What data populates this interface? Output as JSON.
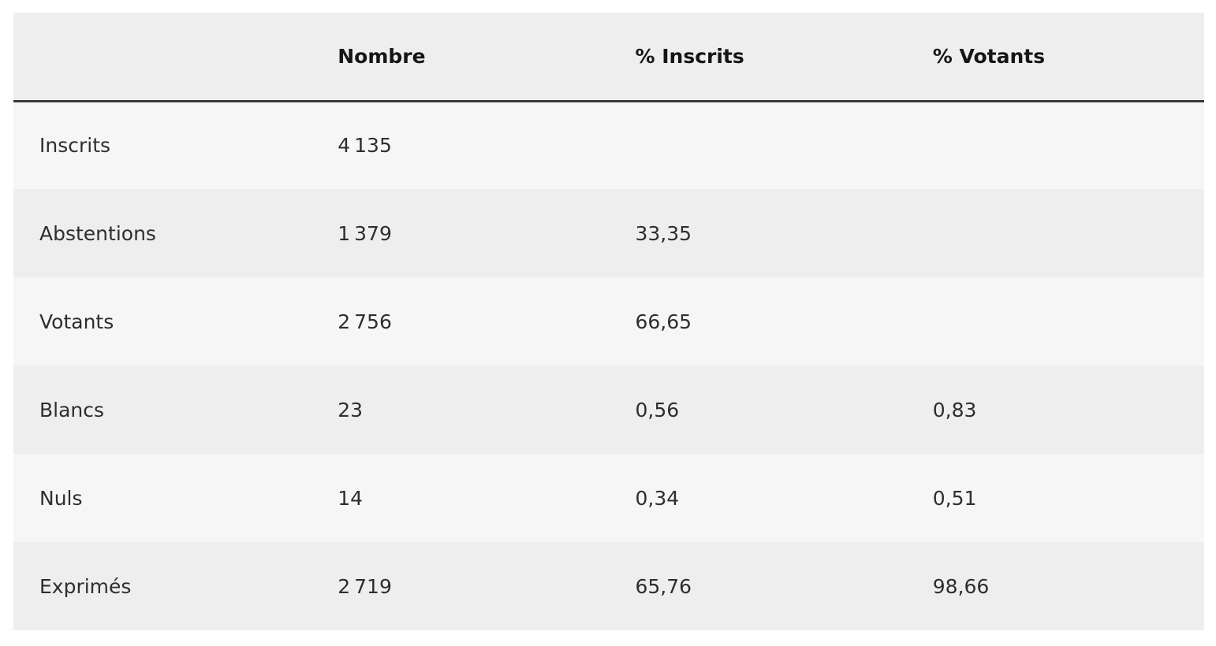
{
  "table": {
    "columns": [
      "Nombre",
      "% Inscrits",
      "% Votants"
    ],
    "rows": [
      [
        "Inscrits",
        "4 135",
        null,
        null
      ],
      [
        "Abstentions",
        "1 379",
        "33,35",
        null
      ],
      [
        "Votants",
        "2 756",
        "66,65",
        null
      ],
      [
        "Blancs",
        "23",
        "0,56",
        "0,83"
      ],
      [
        "Nuls",
        "14",
        "0,34",
        "0,51"
      ],
      [
        "Exprimés",
        "2 719",
        "65,76",
        "98,66"
      ]
    ]
  }
}
